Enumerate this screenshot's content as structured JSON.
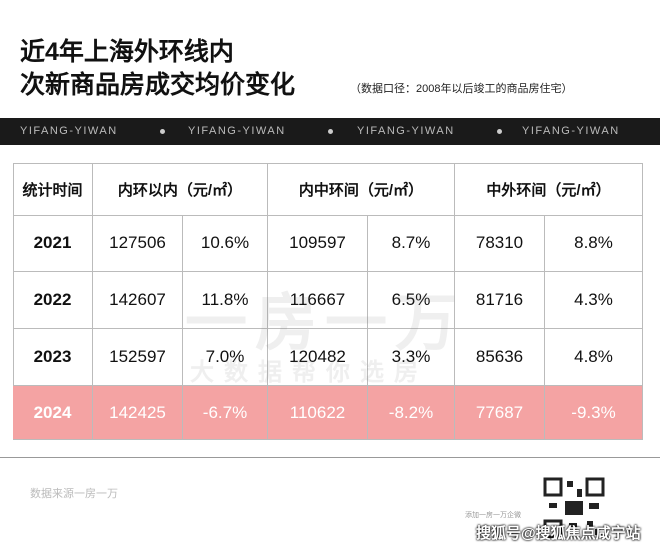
{
  "header": {
    "title_lines": [
      "近4年上海外环线内",
      "次新商品房成交均价变化"
    ],
    "note": "（数据口径：2008年以后竣工的商品房住宅）"
  },
  "banner": [
    "YIFANG-YIWAN",
    "YIFANG-YIWAN",
    "YIFANG-YIWAN",
    "YIFANG-YIWAN"
  ],
  "table": {
    "headers": [
      "统计时间",
      "内环以内（元/㎡）",
      "内中环间（元/㎡）",
      "中外环间（元/㎡）"
    ],
    "rows": [
      [
        "2021",
        "127506",
        "10.6%",
        "109597",
        "8.7%",
        "78310",
        "8.8%"
      ],
      [
        "2022",
        "142607",
        "11.8%",
        "116667",
        "6.5%",
        "81716",
        "4.3%"
      ],
      [
        "2023",
        "152597",
        "7.0%",
        "120482",
        "3.3%",
        "85636",
        "4.8%"
      ],
      [
        "2024",
        "142425",
        "-6.7%",
        "110622",
        "-8.2%",
        "77687",
        "-9.3%"
      ]
    ]
  },
  "watermark": {
    "main": "一房一万",
    "sub": "大数据帮你选房"
  },
  "footer": {
    "source": "数据来源一房一万",
    "qr_caption": "添加一房一万企微",
    "credit": "搜狐号@搜狐焦点咸宁站"
  }
}
